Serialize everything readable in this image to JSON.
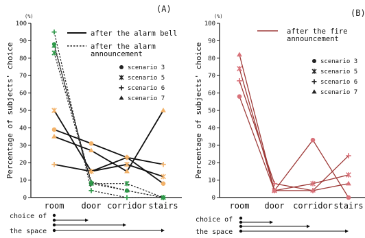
{
  "chart_data": [
    {
      "type": "line",
      "panel_label": "(A)",
      "unit": "(%)",
      "ylabel": "Percentage of subjects' choice",
      "categories": [
        "room",
        "door",
        "corridor",
        "stairs"
      ],
      "ylim": [
        0,
        100
      ],
      "yticks": [
        0,
        10,
        20,
        30,
        40,
        50,
        60,
        70,
        80,
        90,
        100
      ],
      "legend": {
        "line_types": [
          "after the alarm bell",
          "after the alarm\nannouncement"
        ],
        "markers": [
          "scenario 3",
          "scenario 5",
          "scenario 6",
          "scenario 7"
        ]
      },
      "series": [
        {
          "group": "bell",
          "scenario": "scenario 3",
          "values": [
            39,
            31,
            23,
            8
          ]
        },
        {
          "group": "bell",
          "scenario": "scenario 5",
          "values": [
            50,
            15,
            19,
            12
          ]
        },
        {
          "group": "bell",
          "scenario": "scenario 6",
          "values": [
            19,
            15,
            23,
            19
          ]
        },
        {
          "group": "bell",
          "scenario": "scenario 7",
          "values": [
            35,
            27,
            15,
            50
          ]
        },
        {
          "group": "announcement",
          "scenario": "scenario 3",
          "values": [
            88,
            8,
            4,
            0
          ]
        },
        {
          "group": "announcement",
          "scenario": "scenario 5",
          "values": [
            83,
            8,
            8,
            0
          ]
        },
        {
          "group": "announcement",
          "scenario": "scenario 6",
          "values": [
            95,
            4,
            0,
            0
          ]
        },
        {
          "group": "announcement",
          "scenario": "scenario 7",
          "values": [
            87,
            9,
            4,
            0
          ]
        }
      ]
    },
    {
      "type": "line",
      "panel_label": "(B)",
      "unit": "(%)",
      "ylabel": "Percentage of subjects' choice",
      "categories": [
        "room",
        "door",
        "corridor",
        "stairs"
      ],
      "ylim": [
        0,
        100
      ],
      "yticks": [
        0,
        10,
        20,
        30,
        40,
        50,
        60,
        70,
        80,
        90,
        100
      ],
      "legend": {
        "line_types": [
          "after the fire\nannouncement"
        ],
        "markers": [
          "scenario 3",
          "scenario 5",
          "scenario 6",
          "scenario 7"
        ]
      },
      "series": [
        {
          "group": "fire",
          "scenario": "scenario 3",
          "values": [
            58,
            4,
            33,
            0
          ]
        },
        {
          "group": "fire",
          "scenario": "scenario 5",
          "values": [
            74,
            4,
            8,
            13
          ]
        },
        {
          "group": "fire",
          "scenario": "scenario 6",
          "values": [
            67,
            8,
            4,
            24
          ]
        },
        {
          "group": "fire",
          "scenario": "scenario 7",
          "values": [
            82,
            4,
            4,
            8
          ]
        }
      ]
    }
  ],
  "choice_label": [
    "choice of",
    "the space"
  ],
  "colors": {
    "bell": "#111111",
    "bell_marker": "#f2b26a",
    "announcement_line": "#222222",
    "announcement_marker": "#2f9a4a",
    "fire": "#9e3a38",
    "fire_marker": "#d9727a",
    "axis": "#111111"
  }
}
